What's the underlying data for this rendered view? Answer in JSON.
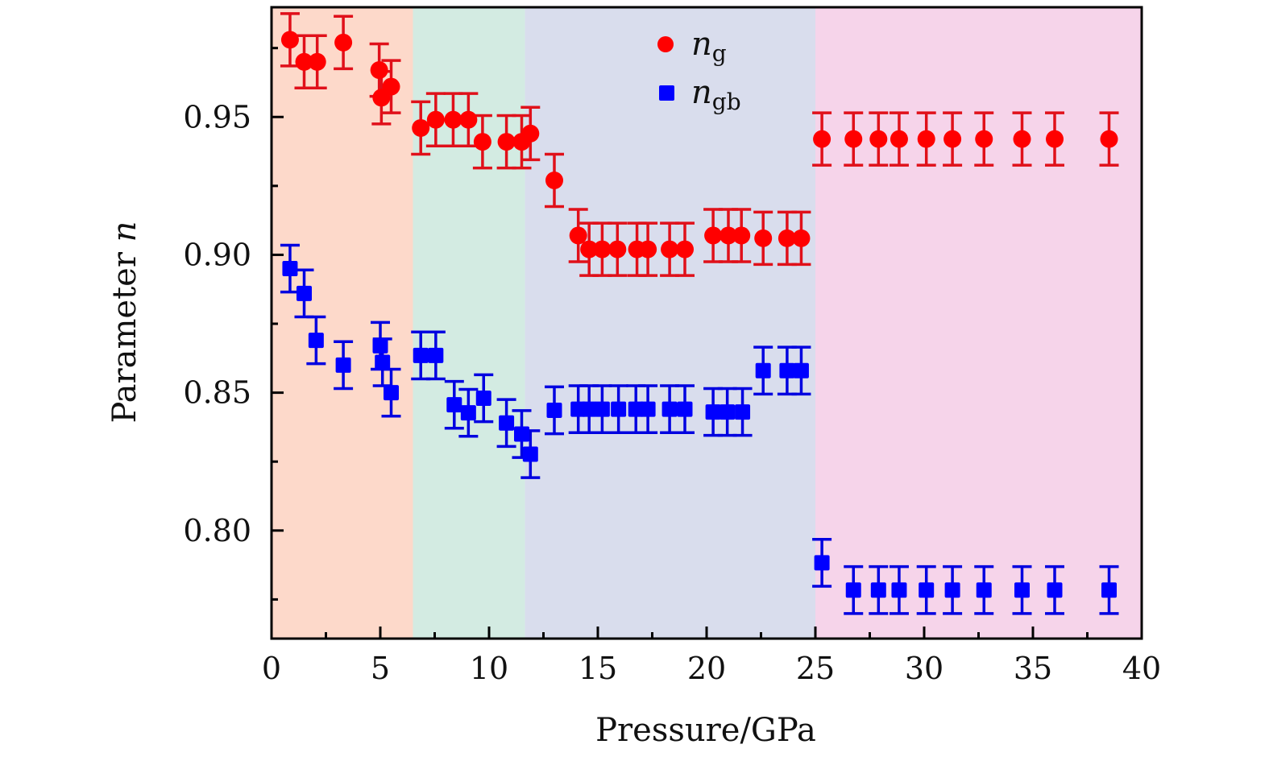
{
  "chart_data": {
    "type": "scatter",
    "title": "",
    "xlabel": "Pressure/GPa",
    "ylabel_text": "Parameter ",
    "ylabel_symbol": "n",
    "xlim": [
      0,
      40
    ],
    "ylim": [
      0.7608,
      0.9898
    ],
    "grid": false,
    "legend_position": "top-center",
    "x_ticks": [
      0,
      5,
      10,
      15,
      20,
      25,
      30,
      35,
      40
    ],
    "x_tick_labels": [
      "0",
      "5",
      "10",
      "15",
      "20",
      "25",
      "30",
      "35",
      "40"
    ],
    "x_minor_ticks": [
      2.5,
      7.5,
      12.5,
      17.5,
      22.5,
      27.5,
      32.5,
      37.5
    ],
    "y_ticks": [
      0.8,
      0.85,
      0.9,
      0.95
    ],
    "y_tick_labels": [
      "0.80",
      "0.85",
      "0.90",
      "0.95"
    ],
    "y_minor_ticks": [
      0.775,
      0.825,
      0.875,
      0.925,
      0.975
    ],
    "regions": [
      {
        "name": "region-1",
        "x_start": 0,
        "x_end": 6.5,
        "color": "#FDD9CA"
      },
      {
        "name": "region-2",
        "x_start": 6.5,
        "x_end": 11.65,
        "color": "#D3EBE2"
      },
      {
        "name": "region-3",
        "x_start": 11.65,
        "x_end": 25.0,
        "color": "#D9DDED"
      },
      {
        "name": "region-4",
        "x_start": 25.0,
        "x_end": 40,
        "color": "#F6D4EA"
      }
    ],
    "series": [
      {
        "name": "n_g",
        "symbol": "n",
        "subscript": "g",
        "marker": "circle",
        "color": "#FF0000",
        "error_color": "#E0101A",
        "error": 0.0095,
        "x": [
          0.85,
          1.5,
          2.1,
          3.3,
          4.95,
          5.05,
          5.5,
          6.86,
          7.55,
          8.35,
          9.05,
          9.7,
          10.8,
          11.5,
          11.9,
          13.0,
          14.1,
          14.6,
          15.2,
          15.9,
          16.8,
          17.3,
          18.3,
          19.0,
          20.3,
          21.0,
          21.6,
          22.6,
          23.7,
          24.35,
          25.3,
          26.75,
          27.9,
          28.85,
          30.1,
          31.3,
          32.75,
          34.5,
          36.0,
          38.5
        ],
        "y": [
          0.978,
          0.97,
          0.97,
          0.977,
          0.967,
          0.957,
          0.961,
          0.946,
          0.949,
          0.949,
          0.949,
          0.941,
          0.941,
          0.941,
          0.944,
          0.927,
          0.907,
          0.902,
          0.902,
          0.902,
          0.902,
          0.902,
          0.902,
          0.902,
          0.907,
          0.907,
          0.907,
          0.906,
          0.906,
          0.906,
          0.942,
          0.942,
          0.942,
          0.942,
          0.942,
          0.942,
          0.942,
          0.942,
          0.942,
          0.942
        ]
      },
      {
        "name": "n_gb",
        "symbol": "n",
        "subscript": "gb",
        "marker": "square",
        "color": "#0000FF",
        "error_color": "#0000E0",
        "error": 0.0085,
        "x": [
          0.85,
          1.5,
          2.05,
          3.3,
          5.0,
          5.1,
          5.5,
          6.86,
          7.55,
          8.4,
          9.05,
          9.75,
          10.8,
          11.5,
          11.9,
          13.0,
          14.1,
          14.6,
          15.2,
          15.95,
          16.75,
          17.3,
          18.3,
          19.0,
          20.3,
          20.95,
          21.65,
          22.6,
          23.7,
          24.35,
          25.3,
          26.75,
          27.9,
          28.85,
          30.1,
          31.3,
          32.75,
          34.5,
          36.0,
          38.5
        ],
        "y": [
          0.895,
          0.886,
          0.869,
          0.86,
          0.867,
          0.861,
          0.85,
          0.8635,
          0.8635,
          0.8456,
          0.8427,
          0.848,
          0.839,
          0.835,
          0.8277,
          0.8436,
          0.844,
          0.844,
          0.844,
          0.844,
          0.844,
          0.844,
          0.844,
          0.844,
          0.843,
          0.843,
          0.843,
          0.858,
          0.858,
          0.858,
          0.7883,
          0.7784,
          0.7784,
          0.7784,
          0.7784,
          0.7784,
          0.7784,
          0.7784,
          0.7784,
          0.7784
        ]
      }
    ]
  }
}
